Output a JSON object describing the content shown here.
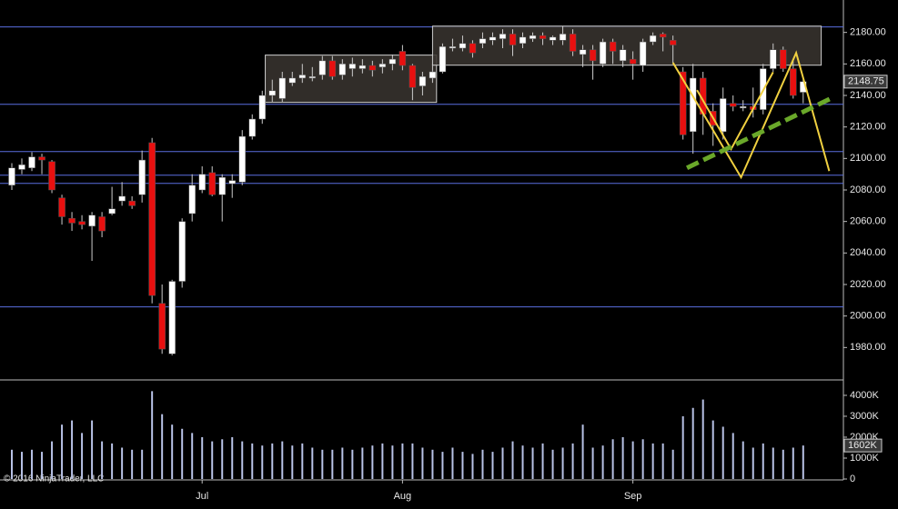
{
  "chart_data": {
    "type": "candlestick",
    "categories": [
      null,
      null,
      null,
      null,
      null,
      null,
      null,
      null,
      null,
      null,
      null,
      null,
      null,
      null,
      null,
      null,
      null,
      null,
      null,
      "Jul",
      null,
      null,
      null,
      null,
      null,
      null,
      null,
      null,
      null,
      null,
      null,
      null,
      null,
      null,
      null,
      null,
      null,
      null,
      null,
      "Aug",
      null,
      null,
      null,
      null,
      null,
      null,
      null,
      null,
      null,
      null,
      null,
      null,
      null,
      null,
      null,
      null,
      null,
      null,
      null,
      null,
      null,
      null,
      "Sep",
      null,
      null,
      null,
      null,
      null,
      null,
      null,
      null,
      null,
      null,
      null,
      null,
      null,
      null,
      null,
      null,
      null
    ],
    "open": [
      2083,
      2093,
      2094,
      2101,
      2098,
      2075,
      2062,
      2060,
      2057,
      2063,
      2065,
      2073,
      2073,
      2077,
      2110,
      2008,
      1976,
      2022,
      2065,
      2080,
      2091,
      2077,
      2084,
      2085,
      2114,
      2125,
      2140,
      2138,
      2148,
      2151,
      2151,
      2153,
      2162,
      2153,
      2157,
      2157,
      2159,
      2158,
      2160,
      2168,
      2159,
      2146,
      2151,
      2155,
      2170,
      2170,
      2173,
      2173,
      2175,
      2176,
      2179,
      2173,
      2176,
      2178,
      2175,
      2175,
      2179,
      2166,
      2169,
      2160,
      2174,
      2162,
      2163,
      2159,
      2174,
      2179,
      2175,
      2155,
      2117,
      2151,
      2130,
      2117,
      2135,
      2132,
      2133,
      2131,
      2157,
      2169,
      2157,
      2142
    ],
    "high": [
      2097,
      2100,
      2104,
      2103,
      2099,
      2077,
      2066,
      2064,
      2066,
      2066,
      2082,
      2085,
      2076,
      2105,
      2113,
      2020,
      2023,
      2062,
      2090,
      2095,
      2095,
      2090,
      2090,
      2118,
      2128,
      2143,
      2150,
      2155,
      2155,
      2160,
      2158,
      2165,
      2165,
      2163,
      2164,
      2163,
      2162,
      2163,
      2166,
      2172,
      2160,
      2155,
      2160,
      2173,
      2176,
      2178,
      2175,
      2180,
      2180,
      2182,
      2182,
      2180,
      2180,
      2180,
      2178,
      2184,
      2182,
      2172,
      2172,
      2176,
      2176,
      2172,
      2168,
      2176,
      2180,
      2180,
      2178,
      2158,
      2160,
      2155,
      2135,
      2145,
      2140,
      2137,
      2145,
      2160,
      2173,
      2171,
      2163,
      2150
    ],
    "low": [
      2080,
      2090,
      2092,
      2090,
      2078,
      2058,
      2054,
      2055,
      2035,
      2050,
      2064,
      2070,
      2068,
      2072,
      2008,
      1976,
      1975,
      2018,
      2060,
      2078,
      2076,
      2060,
      2075,
      2083,
      2112,
      2122,
      2136,
      2136,
      2146,
      2148,
      2149,
      2150,
      2150,
      2150,
      2152,
      2154,
      2152,
      2154,
      2156,
      2156,
      2137,
      2140,
      2148,
      2154,
      2168,
      2168,
      2164,
      2170,
      2172,
      2170,
      2165,
      2170,
      2174,
      2172,
      2172,
      2172,
      2165,
      2158,
      2150,
      2158,
      2160,
      2158,
      2150,
      2155,
      2172,
      2168,
      2160,
      2112,
      2103,
      2115,
      2108,
      2112,
      2130,
      2130,
      2126,
      2128,
      2155,
      2155,
      2138,
      2135
    ],
    "close": [
      2094,
      2096,
      2101,
      2099,
      2080,
      2063,
      2059,
      2058,
      2064,
      2054,
      2068,
      2076,
      2070,
      2099,
      2013,
      1979,
      2022,
      2060,
      2083,
      2090,
      2077,
      2088,
      2086,
      2114,
      2125,
      2140,
      2143,
      2151,
      2151,
      2153,
      2152,
      2162,
      2152,
      2160,
      2160,
      2159,
      2156,
      2160,
      2163,
      2159,
      2145,
      2152,
      2155,
      2171,
      2171,
      2173,
      2167,
      2176,
      2177,
      2179,
      2172,
      2177,
      2178,
      2176,
      2177,
      2179,
      2168,
      2169,
      2162,
      2174,
      2168,
      2169,
      2160,
      2174,
      2178,
      2177,
      2172,
      2115,
      2151,
      2128,
      2121,
      2138,
      2133,
      2133,
      2131,
      2157,
      2169,
      2157,
      2140,
      2148.75
    ],
    "volume": [
      1400,
      1300,
      1400,
      1300,
      1800,
      2600,
      2800,
      2200,
      2800,
      1800,
      1700,
      1500,
      1400,
      1400,
      4200,
      3100,
      2600,
      2400,
      2200,
      2000,
      1800,
      1900,
      2000,
      1800,
      1700,
      1600,
      1700,
      1800,
      1600,
      1700,
      1500,
      1400,
      1400,
      1500,
      1400,
      1500,
      1600,
      1700,
      1600,
      1700,
      1700,
      1500,
      1400,
      1300,
      1500,
      1300,
      1200,
      1400,
      1300,
      1500,
      1800,
      1600,
      1500,
      1700,
      1400,
      1500,
      1700,
      2600,
      1500,
      1600,
      1900,
      2000,
      1800,
      1900,
      1700,
      1700,
      1400,
      3000,
      3400,
      3800,
      2800,
      2500,
      2200,
      1800,
      1500,
      1700,
      1500,
      1400,
      1500,
      1602
    ],
    "last_volume_label": "1602K",
    "up_color": "#ffffff",
    "down_color": "#e81010",
    "volume_color": "#b8c2e6",
    "ylim": [
      1960,
      2200
    ],
    "yticks": [
      {
        "value": 1980,
        "label": "1980.00"
      },
      {
        "value": 2000,
        "label": "2000.00"
      },
      {
        "value": 2020,
        "label": "2020.00"
      },
      {
        "value": 2040,
        "label": "2040.00"
      },
      {
        "value": 2060,
        "label": "2060.00"
      },
      {
        "value": 2080,
        "label": "2080.00"
      },
      {
        "value": 2100,
        "label": "2100.00"
      },
      {
        "value": 2120,
        "label": "2120.00"
      },
      {
        "value": 2140,
        "label": "2140.00"
      },
      {
        "value": 2160,
        "label": "2160.00"
      },
      {
        "value": 2180,
        "label": "2180.00"
      }
    ],
    "volume_ylim": [
      0,
      4650
    ],
    "volume_yticks": [
      0,
      {
        "value": 1000,
        "label": "1000K"
      },
      {
        "value": 2000,
        "label": "2000K"
      },
      {
        "value": 3000,
        "label": "3000K"
      },
      {
        "value": 4000,
        "label": "4000K"
      }
    ],
    "hlines": [
      2183.5,
      2134.4,
      2104.4,
      2089.4,
      2084.2,
      2005.8
    ],
    "hline_color": "#5a6ee0",
    "boxes": [
      {
        "start": 25.3,
        "end": 42.4,
        "top": 2165.6,
        "bottom": 2135.6
      },
      {
        "start": 42.0,
        "end": 80.8,
        "top": 2184,
        "bottom": 2159.2
      }
    ],
    "pattern_lines": [
      [
        [
          66.0,
          2160.8
        ],
        [
          72.8,
          2088
        ],
        [
          78.3,
          2167
        ],
        [
          81.6,
          2092
        ]
      ],
      [
        [
          68.4,
          2143.4
        ],
        [
          71.8,
          2105.9
        ],
        [
          76.0,
          2154.8
        ]
      ]
    ],
    "pattern_color": "#f0d040",
    "trendline": [
      [
        67.4,
        2094
      ],
      [
        81.9,
        2138.5
      ]
    ],
    "trendline_color": "#6aa82a",
    "copyright": "© 2016 NinjaTrader, LLC"
  }
}
